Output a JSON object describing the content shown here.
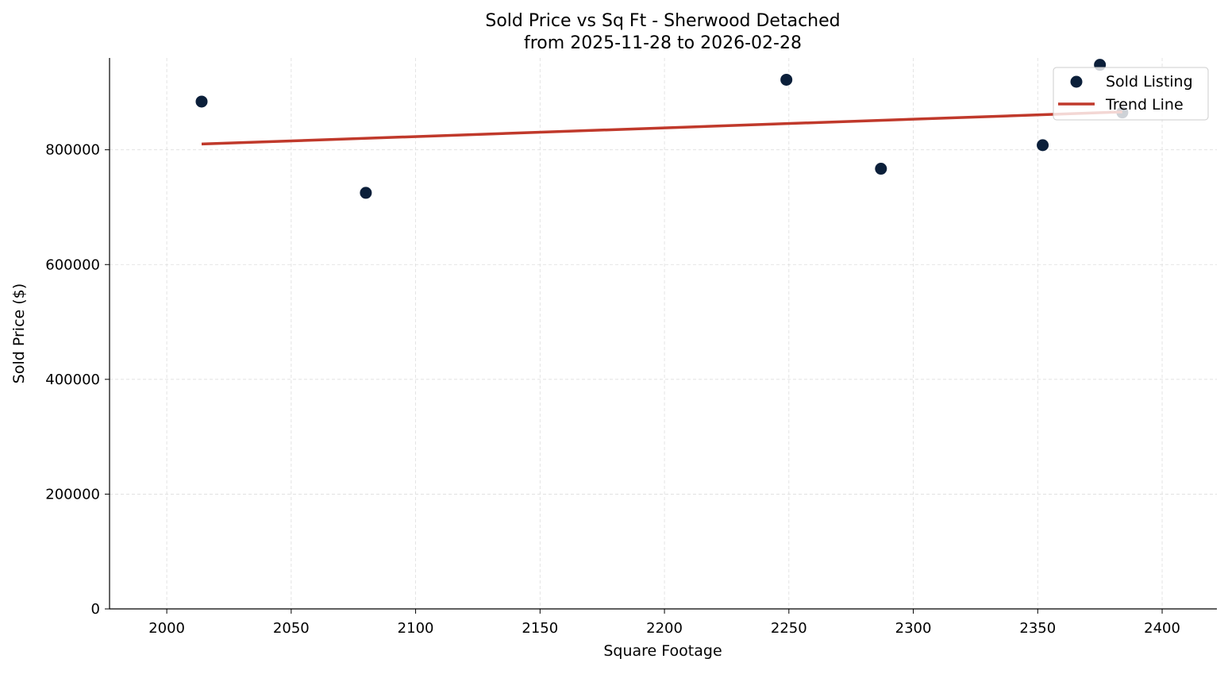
{
  "chart_data": {
    "type": "scatter",
    "title": "Sold Price vs Sq Ft - Sherwood Detached",
    "subtitle": "from 2025-11-28 to 2026-02-28",
    "xlabel": "Square Footage",
    "ylabel": "Sold Price ($)",
    "xlim": [
      1977,
      2422
    ],
    "ylim": [
      0,
      960000
    ],
    "xticks": [
      2000,
      2050,
      2100,
      2150,
      2200,
      2250,
      2300,
      2350,
      2400
    ],
    "yticks": [
      0,
      200000,
      400000,
      600000,
      800000
    ],
    "grid": true,
    "legend_position": "top-right",
    "series": [
      {
        "name": "Sold Listing",
        "type": "scatter",
        "color": "#0b1f3a",
        "points": [
          {
            "x": 2014,
            "y": 884000
          },
          {
            "x": 2080,
            "y": 725000
          },
          {
            "x": 2249,
            "y": 922000
          },
          {
            "x": 2287,
            "y": 767000
          },
          {
            "x": 2352,
            "y": 808000
          },
          {
            "x": 2375,
            "y": 948000
          },
          {
            "x": 2384,
            "y": 865000
          }
        ]
      },
      {
        "name": "Trend Line",
        "type": "line",
        "color": "#c0392b",
        "points": [
          {
            "x": 2014,
            "y": 810000
          },
          {
            "x": 2384,
            "y": 866000
          }
        ]
      }
    ]
  }
}
